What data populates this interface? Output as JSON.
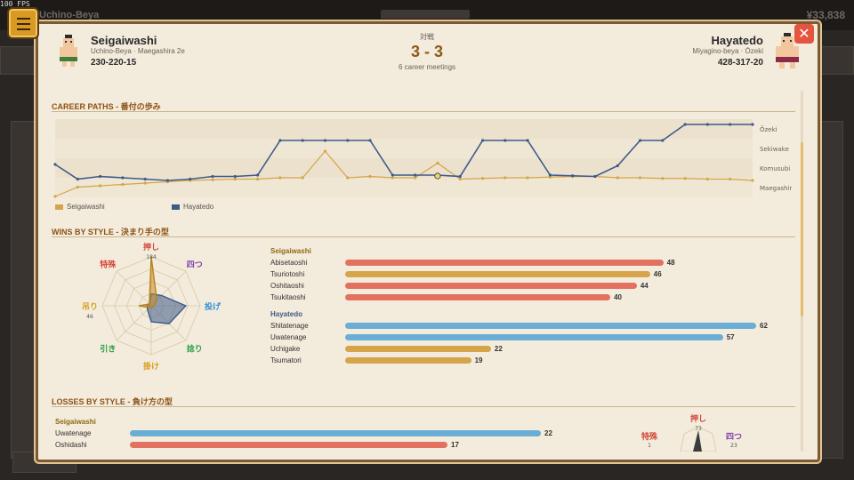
{
  "fps": "100 FPS",
  "background": {
    "stable_name": "Uchino-Beya",
    "money": "¥33,838"
  },
  "east": {
    "name": "Seigaiwashi",
    "subtitle": "Uchino-Beya · Maegashira 2e",
    "record": "230-220-15"
  },
  "west": {
    "name": "Hayatedo",
    "subtitle": "Miyagino-beya · Ōzeki",
    "record": "428-317-20"
  },
  "head_to_head": {
    "label": "対戦",
    "score": "3 - 3",
    "meetings": "6 career meetings"
  },
  "sections": {
    "career": "CAREER PATHS - 番付の歩み",
    "wins": "WINS BY STYLE - 決まり手の型",
    "losses": "LOSSES BY STYLE - 負け方の型"
  },
  "colors": {
    "east": "#d6a44a",
    "west": "#3d5a8a",
    "red": "#e2725f",
    "blue": "#6aaed6",
    "gold": "#d6a44a"
  },
  "chart_data": {
    "type": "line",
    "rank_labels": [
      "Ōzeki",
      "Sekiwake",
      "Komusubi",
      "Maegashir"
    ],
    "legend": [
      "Seigaiwashi",
      "Hayatedo"
    ],
    "series": [
      {
        "name": "Seigaiwashi",
        "ranks": [
          5.4,
          4.7,
          4.6,
          4.5,
          4.4,
          4.3,
          4.2,
          4.15,
          4.1,
          4.1,
          4.0,
          4.0,
          2.0,
          4.0,
          3.9,
          4.0,
          4.0,
          2.9,
          4.1,
          4.05,
          4.0,
          4.0,
          3.95,
          3.9,
          3.9,
          4.0,
          4.0,
          4.05,
          4.05,
          4.1,
          4.1,
          4.2
        ]
      },
      {
        "name": "Hayatedo",
        "ranks": [
          3.0,
          4.1,
          3.9,
          4.0,
          4.1,
          4.2,
          4.1,
          3.9,
          3.9,
          3.8,
          1.2,
          1.2,
          1.2,
          1.2,
          1.2,
          3.8,
          3.8,
          3.8,
          3.9,
          1.2,
          1.2,
          1.2,
          3.8,
          3.85,
          3.9,
          3.1,
          1.2,
          1.2,
          0.0,
          0.0,
          0.0,
          0.0
        ]
      }
    ],
    "highlight_index": 17
  },
  "wins": {
    "radar": {
      "axes": [
        "押し",
        "四つ",
        "投げ",
        "捻り",
        "掛け",
        "引き",
        "吊り",
        "特殊"
      ],
      "axis_values": {
        "push": "184",
        "lift": "46"
      },
      "east": [
        184,
        30,
        10,
        8,
        6,
        10,
        46,
        10
      ],
      "west": [
        45,
        55,
        130,
        95,
        60,
        20,
        15,
        10
      ],
      "max": 184
    },
    "east_label": "Seigaiwashi",
    "east_bars": [
      {
        "label": "Abisetaoshi",
        "value": 48,
        "color": "red"
      },
      {
        "label": "Tsuriotoshi",
        "value": 46,
        "color": "gold"
      },
      {
        "label": "Oshitaoshi",
        "value": 44,
        "color": "red"
      },
      {
        "label": "Tsukitaoshi",
        "value": 40,
        "color": "red"
      }
    ],
    "west_label": "Hayatedo",
    "west_bars": [
      {
        "label": "Shitatenage",
        "value": 62,
        "color": "blue"
      },
      {
        "label": "Uwatenage",
        "value": 57,
        "color": "blue"
      },
      {
        "label": "Uchigake",
        "value": 22,
        "color": "gold"
      },
      {
        "label": "Tsumatori",
        "value": 19,
        "color": "gold"
      }
    ]
  },
  "losses": {
    "east_label": "Seigaiwashi",
    "east_bars": [
      {
        "label": "Uwatenage",
        "value": 22,
        "color": "blue"
      },
      {
        "label": "Oshidashi",
        "value": 17,
        "color": "red"
      }
    ],
    "radar_labels": {
      "push": "押し",
      "special": "特殊",
      "four": "四つ"
    },
    "radar_values": {
      "push": "73",
      "special": "1",
      "four": "23"
    }
  }
}
